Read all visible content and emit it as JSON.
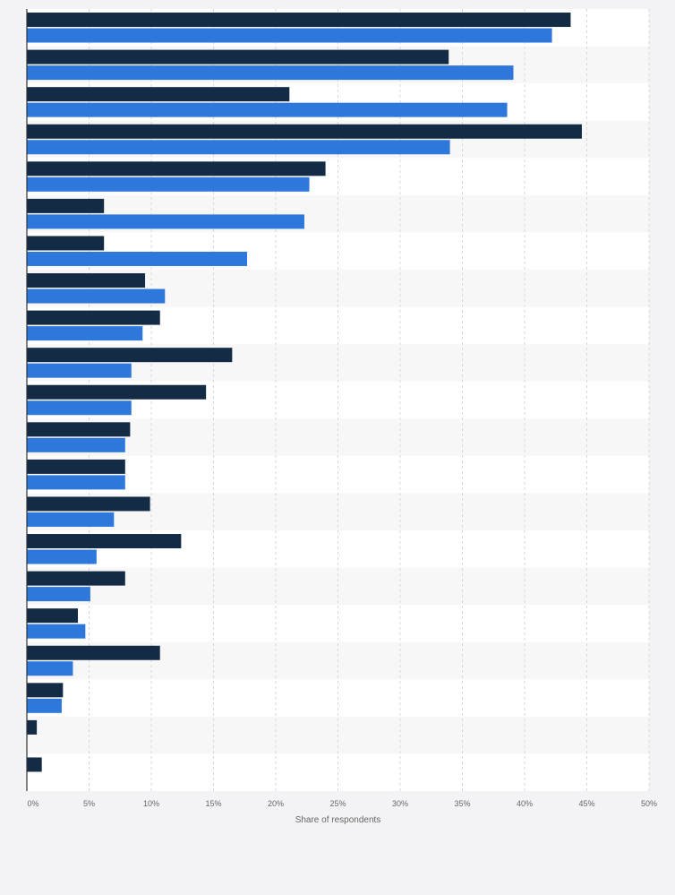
{
  "chart_data": {
    "type": "bar",
    "orientation": "horizontal",
    "title": "",
    "xlabel": "Share of respondents",
    "ylabel": "",
    "xlim": [
      0,
      50
    ],
    "x_ticks": [
      0,
      5,
      10,
      15,
      20,
      25,
      30,
      35,
      40,
      45,
      50
    ],
    "x_tick_labels": [
      "0%",
      "5%",
      "10%",
      "15%",
      "20%",
      "25%",
      "30%",
      "35%",
      "40%",
      "45%",
      "50%"
    ],
    "grid": true,
    "legend": "none",
    "series": [
      {
        "color": "#132b44",
        "values": [
          43.7,
          33.9,
          21.1,
          44.6,
          24.0,
          6.2,
          6.2,
          9.5,
          10.7,
          16.5,
          14.4,
          8.3,
          7.9,
          9.9,
          12.4,
          7.9,
          4.1,
          10.7,
          2.9,
          0.8,
          1.2
        ]
      },
      {
        "color": "#2e78dc",
        "values": [
          42.2,
          39.1,
          38.6,
          34.0,
          22.7,
          22.3,
          17.7,
          11.1,
          9.3,
          8.4,
          8.4,
          7.9,
          7.9,
          7.0,
          5.6,
          5.1,
          4.7,
          3.7,
          2.8,
          null,
          null
        ]
      }
    ]
  }
}
